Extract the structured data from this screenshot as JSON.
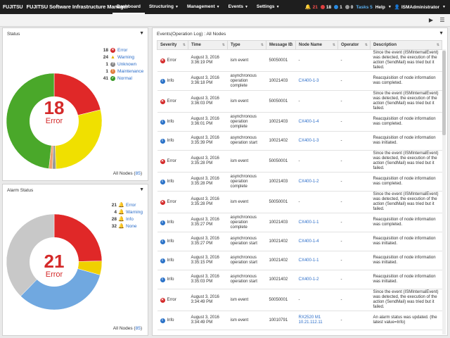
{
  "header": {
    "brand_logo": "FUJITSU",
    "brand_name": "FUJITSU Software Infrastructure Manager",
    "nav": [
      {
        "label": "Dashboard",
        "active": true
      },
      {
        "label": "Structuring"
      },
      {
        "label": "Management"
      },
      {
        "label": "Events"
      },
      {
        "label": "Settings"
      }
    ],
    "counts": {
      "error": "21",
      "warning": "18",
      "info": "1",
      "unknown": "0"
    },
    "tasks": "Tasks 5",
    "help": "Help",
    "user": "ISMAdministrator"
  },
  "status_panel": {
    "title": "Status",
    "center_count": "18",
    "center_label": "Error",
    "legend": [
      {
        "count": "18",
        "label": "Error",
        "color": "#e02828"
      },
      {
        "count": "24",
        "label": "Warning",
        "color": "#f0e000"
      },
      {
        "count": "1",
        "label": "Unknown",
        "color": "#999999"
      },
      {
        "count": "1",
        "label": "Maintenance",
        "color": "#f0a070"
      },
      {
        "count": "41",
        "label": "Normal",
        "color": "#4aa82a"
      }
    ],
    "all_nodes_label": "All Nodes (",
    "all_nodes_count": "85",
    "all_nodes_close": ")"
  },
  "alarm_panel": {
    "title": "Alarm Status",
    "center_count": "21",
    "center_label": "Error",
    "legend": [
      {
        "count": "21",
        "label": "Error",
        "color": "#e02828"
      },
      {
        "count": "4",
        "label": "Warning",
        "color": "#f0d000"
      },
      {
        "count": "28",
        "label": "Info",
        "color": "#70a8e0"
      },
      {
        "count": "32",
        "label": "None",
        "color": "#c8c8c8"
      }
    ],
    "all_nodes_label": "All Nodes (",
    "all_nodes_count": "85",
    "all_nodes_close": ")"
  },
  "events_panel": {
    "title": "Events(Operation Log) : All Nodes",
    "columns": [
      "Severity",
      "Time",
      "Type",
      "Message ID",
      "Node Name",
      "Operator",
      "Description"
    ],
    "rows": [
      {
        "severity": "Error",
        "time": "August 3, 2016 3:36:19 PM",
        "type": "ism event",
        "msgid": "50050001",
        "node": "-",
        "operator": "-",
        "desc": "Since the event (ISMInternalEvent) was detected, the execution of the action (SendMail) was tried but it failed."
      },
      {
        "severity": "Info",
        "time": "August 3, 2016 3:36:18 PM",
        "type": "asynchronous operation complete",
        "msgid": "10021403",
        "node": "CX400-1-3",
        "operator": "-",
        "desc": "Reacquisition of node information was completed."
      },
      {
        "severity": "Error",
        "time": "August 3, 2016 3:36:03 PM",
        "type": "ism event",
        "msgid": "50050001",
        "node": "-",
        "operator": "-",
        "desc": "Since the event (ISMInternalEvent) was detected, the execution of the action (SendMail) was tried but it failed."
      },
      {
        "severity": "Info",
        "time": "August 3, 2016 3:36:01 PM",
        "type": "asynchronous operation complete",
        "msgid": "10021403",
        "node": "CX400-1-4",
        "operator": "-",
        "desc": "Reacquisition of node information was completed."
      },
      {
        "severity": "Info",
        "time": "August 3, 2016 3:35:39 PM",
        "type": "asynchronous operation start",
        "msgid": "10021402",
        "node": "CX400-1-3",
        "operator": "-",
        "desc": "Reacquisition of node information was initiated."
      },
      {
        "severity": "Error",
        "time": "August 3, 2016 3:35:28 PM",
        "type": "ism event",
        "msgid": "50050001",
        "node": "-",
        "operator": "-",
        "desc": "Since the event (ISMInternalEvent) was detected, the execution of the action (SendMail) was tried but it failed."
      },
      {
        "severity": "Info",
        "time": "August 3, 2016 3:35:28 PM",
        "type": "asynchronous operation complete",
        "msgid": "10021403",
        "node": "CX400-1-2",
        "operator": "-",
        "desc": "Reacquisition of node information was completed."
      },
      {
        "severity": "Error",
        "time": "August 3, 2016 3:35:28 PM",
        "type": "ism event",
        "msgid": "50050001",
        "node": "-",
        "operator": "-",
        "desc": "Since the event (ISMInternalEvent) was detected, the execution of the action (SendMail) was tried but it failed."
      },
      {
        "severity": "Info",
        "time": "August 3, 2016 3:35:27 PM",
        "type": "asynchronous operation complete",
        "msgid": "10021403",
        "node": "CX400-1-1",
        "operator": "-",
        "desc": "Reacquisition of node information was completed."
      },
      {
        "severity": "Info",
        "time": "August 3, 2016 3:35:27 PM",
        "type": "asynchronous operation start",
        "msgid": "10021402",
        "node": "CX400-1-4",
        "operator": "-",
        "desc": "Reacquisition of node information was initiated."
      },
      {
        "severity": "Info",
        "time": "August 3, 2016 3:35:15 PM",
        "type": "asynchronous operation start",
        "msgid": "10021402",
        "node": "CX400-1-1",
        "operator": "-",
        "desc": "Reacquisition of node information was initiated."
      },
      {
        "severity": "Info",
        "time": "August 3, 2016 3:35:03 PM",
        "type": "asynchronous operation start",
        "msgid": "10021402",
        "node": "CX400-1-2",
        "operator": "-",
        "desc": "Reacquisition of node information was initiated."
      },
      {
        "severity": "Error",
        "time": "August 3, 2016 3:34:49 PM",
        "type": "ism event",
        "msgid": "50050001",
        "node": "-",
        "operator": "-",
        "desc": "Since the event (ISMInternalEvent) was detected, the execution of the action (SendMail) was tried but it failed."
      },
      {
        "severity": "Info",
        "time": "August 3, 2016 3:34:49 PM",
        "type": "ism event",
        "msgid": "10010791",
        "node": "RX2520 M1 10.21.112.11",
        "operator": "-",
        "desc": "An alarm status was updated. (the latest value=Info)"
      }
    ]
  },
  "colors": {
    "error": "#d42a2a",
    "info": "#2a72c8",
    "link": "#2a6cc8"
  },
  "icons": {
    "play": "play-icon",
    "menu": "menu-icon",
    "filter": "filter-icon"
  }
}
